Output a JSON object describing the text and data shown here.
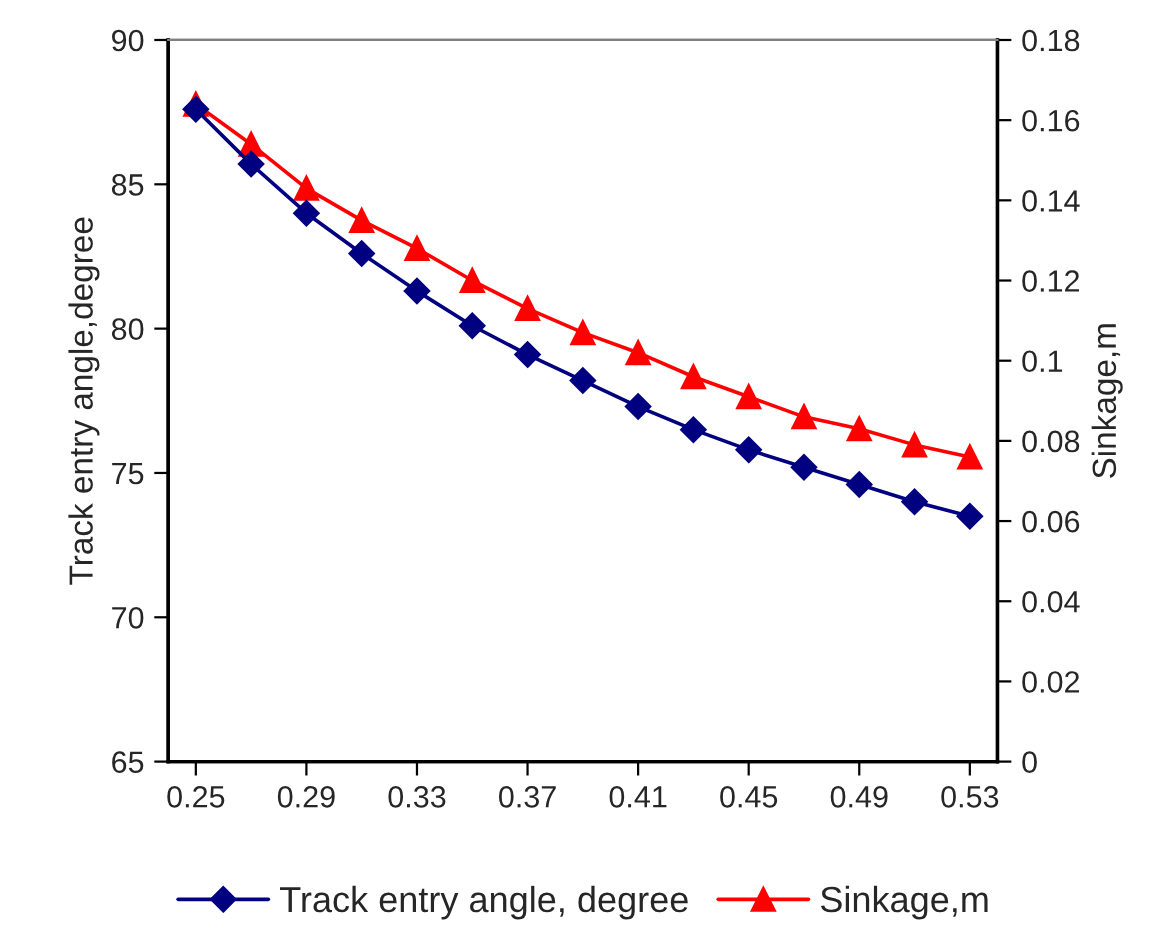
{
  "chart_data": {
    "type": "line",
    "xlabel": null,
    "ylabel": "Track entry angle,degree",
    "y2label": "Sinkage,m",
    "categories": [
      "0.25",
      null,
      "0.29",
      null,
      "0.33",
      null,
      "0.37",
      null,
      "0.41",
      null,
      "0.45",
      null,
      "0.49",
      null,
      "0.53"
    ],
    "series": [
      {
        "name": "Track entry angle, degree",
        "color": "#000080",
        "marker": "diamond",
        "values": [
          87.6,
          85.7,
          84.0,
          82.6,
          81.3,
          80.1,
          79.1,
          78.2,
          77.3,
          76.5,
          75.8,
          75.2,
          74.6,
          74.0,
          73.5
        ]
      },
      {
        "name": "Sinkage,m",
        "color": "#ff0000",
        "marker": "triangle",
        "axis": "y2",
        "values": [
          0.164,
          0.154,
          0.143,
          0.135,
          0.128,
          0.12,
          0.113,
          0.107,
          0.102,
          0.096,
          0.091,
          0.086,
          0.083,
          0.079,
          0.076
        ]
      }
    ],
    "ylim": [
      65,
      90
    ],
    "yticks": [
      65,
      70,
      75,
      80,
      85,
      90
    ],
    "y2lim": [
      0,
      0.18
    ],
    "y2ticks": [
      0,
      0.02,
      0.04,
      0.06,
      0.08,
      0.1,
      0.12,
      0.14,
      0.16,
      0.18
    ],
    "grid": false,
    "legend": "bottom",
    "line_style": "solid"
  }
}
